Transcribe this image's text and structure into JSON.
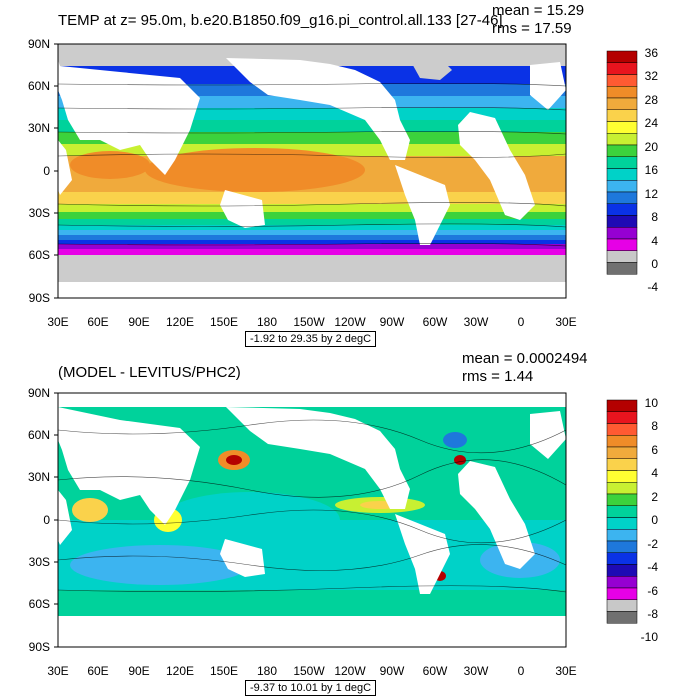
{
  "panels": [
    {
      "title": "TEMP at z=  95.0m, b.e20.B1850.f09_g16.pi_control.all.133 [27-46]",
      "mean": "mean = 15.29",
      "rms": "rms = 17.59",
      "range": "-1.92 to 29.35 by 2 degC",
      "lat_labels": [
        "90N",
        "60N",
        "30N",
        "0",
        "30S",
        "60S",
        "90S"
      ],
      "lon_labels": [
        "30E",
        "60E",
        "90E",
        "120E",
        "150E",
        "180",
        "150W",
        "120W",
        "90W",
        "60W",
        "30W",
        "0",
        "30E"
      ],
      "colorbar_labels": [
        "36",
        "32",
        "28",
        "24",
        "20",
        "16",
        "12",
        "8",
        "4",
        "0",
        "-4"
      ],
      "colorbar_colors": [
        "#b40000",
        "#e8141e",
        "#ff5a32",
        "#f08c28",
        "#f0aa3c",
        "#fad24b",
        "#ffff32",
        "#c8f032",
        "#3cd23c",
        "#00d29b",
        "#00d2c8",
        "#3cb4f0",
        "#1e78dc",
        "#0a32e6",
        "#1e0ab4",
        "#9600d2",
        "#e600e6",
        "#c8c8c8",
        "#707070"
      ]
    },
    {
      "title": "(MODEL - LEVITUS/PHC2)",
      "mean": "mean = 0.0002494",
      "rms": "rms = 1.44",
      "range": "-9.37 to 10.01 by 1 degC",
      "lat_labels": [
        "90N",
        "60N",
        "30N",
        "0",
        "30S",
        "60S",
        "90S"
      ],
      "lon_labels": [
        "30E",
        "60E",
        "90E",
        "120E",
        "150E",
        "180",
        "150W",
        "120W",
        "90W",
        "60W",
        "30W",
        "0",
        "30E"
      ],
      "colorbar_labels": [
        "10",
        "8",
        "6",
        "4",
        "2",
        "0",
        "-2",
        "-4",
        "-6",
        "-8",
        "-10"
      ],
      "colorbar_colors": [
        "#b40000",
        "#e8141e",
        "#ff5a32",
        "#f08c28",
        "#f0aa3c",
        "#fad24b",
        "#ffff32",
        "#c8f032",
        "#3cd23c",
        "#00d29b",
        "#00d2c8",
        "#3cb4f0",
        "#1e78dc",
        "#0a32e6",
        "#1e0ab4",
        "#9600d2",
        "#e600e6",
        "#c8c8c8",
        "#707070"
      ]
    }
  ],
  "colors": {
    "land": "#ffffff",
    "ice": "#cccccc",
    "frame": "#000000"
  }
}
